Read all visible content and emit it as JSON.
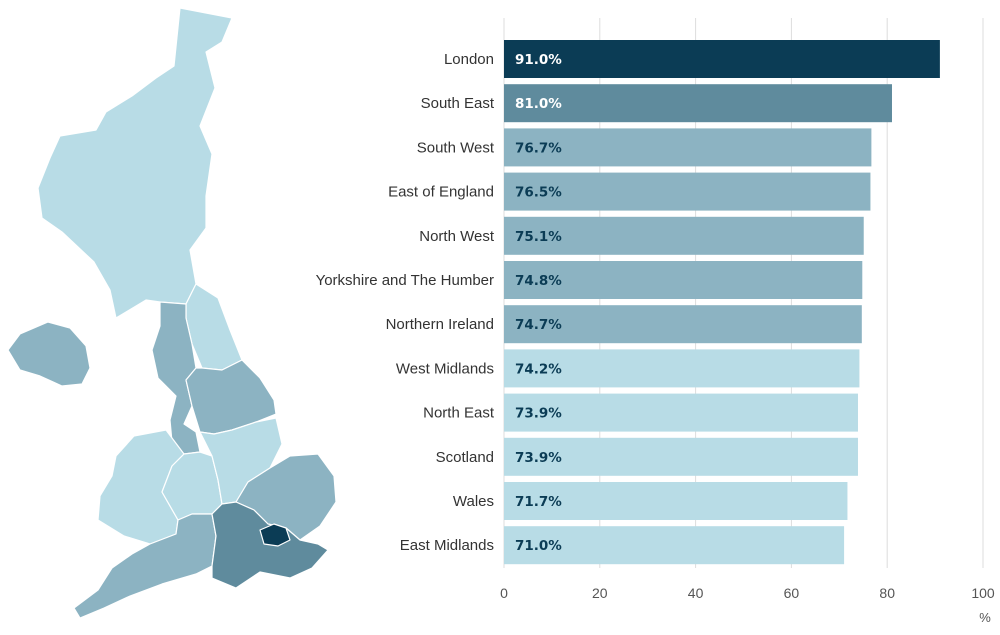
{
  "colors": {
    "darkest": "#0b3c55",
    "dark": "#5f8b9d",
    "medium": "#8cb3c2",
    "light": "#b8dce6",
    "grid": "#dddddd",
    "map_border": "#ffffff"
  },
  "map": {
    "regions": [
      {
        "name": "Scotland",
        "tier": "light"
      },
      {
        "name": "Northern Ireland",
        "tier": "medium"
      },
      {
        "name": "North East",
        "tier": "light"
      },
      {
        "name": "North West",
        "tier": "medium"
      },
      {
        "name": "Yorkshire and The Humber",
        "tier": "medium"
      },
      {
        "name": "Wales",
        "tier": "light"
      },
      {
        "name": "West Midlands",
        "tier": "light"
      },
      {
        "name": "East Midlands",
        "tier": "light"
      },
      {
        "name": "East of England",
        "tier": "medium"
      },
      {
        "name": "South West",
        "tier": "medium"
      },
      {
        "name": "South East",
        "tier": "dark"
      },
      {
        "name": "London",
        "tier": "darkest"
      }
    ]
  },
  "chart_data": {
    "type": "bar",
    "orientation": "horizontal",
    "categories": [
      "London",
      "South East",
      "South West",
      "East of England",
      "North West",
      "Yorkshire and The Humber",
      "Northern Ireland",
      "West Midlands",
      "North East",
      "Scotland",
      "Wales",
      "East Midlands"
    ],
    "values": [
      91.0,
      81.0,
      76.7,
      76.5,
      75.1,
      74.8,
      74.7,
      74.2,
      73.9,
      73.9,
      71.7,
      71.0
    ],
    "value_labels": [
      "91.0%",
      "81.0%",
      "76.7%",
      "76.5%",
      "75.1%",
      "74.8%",
      "74.7%",
      "74.2%",
      "73.9%",
      "73.9%",
      "71.7%",
      "71.0%"
    ],
    "tiers": [
      "darkest",
      "dark",
      "medium",
      "medium",
      "medium",
      "medium",
      "medium",
      "light",
      "light",
      "light",
      "light",
      "light"
    ],
    "xlim": [
      0,
      100
    ],
    "xticks": [
      "0",
      "20",
      "40",
      "60",
      "80",
      "100"
    ],
    "xunit": "%",
    "grid": true
  }
}
